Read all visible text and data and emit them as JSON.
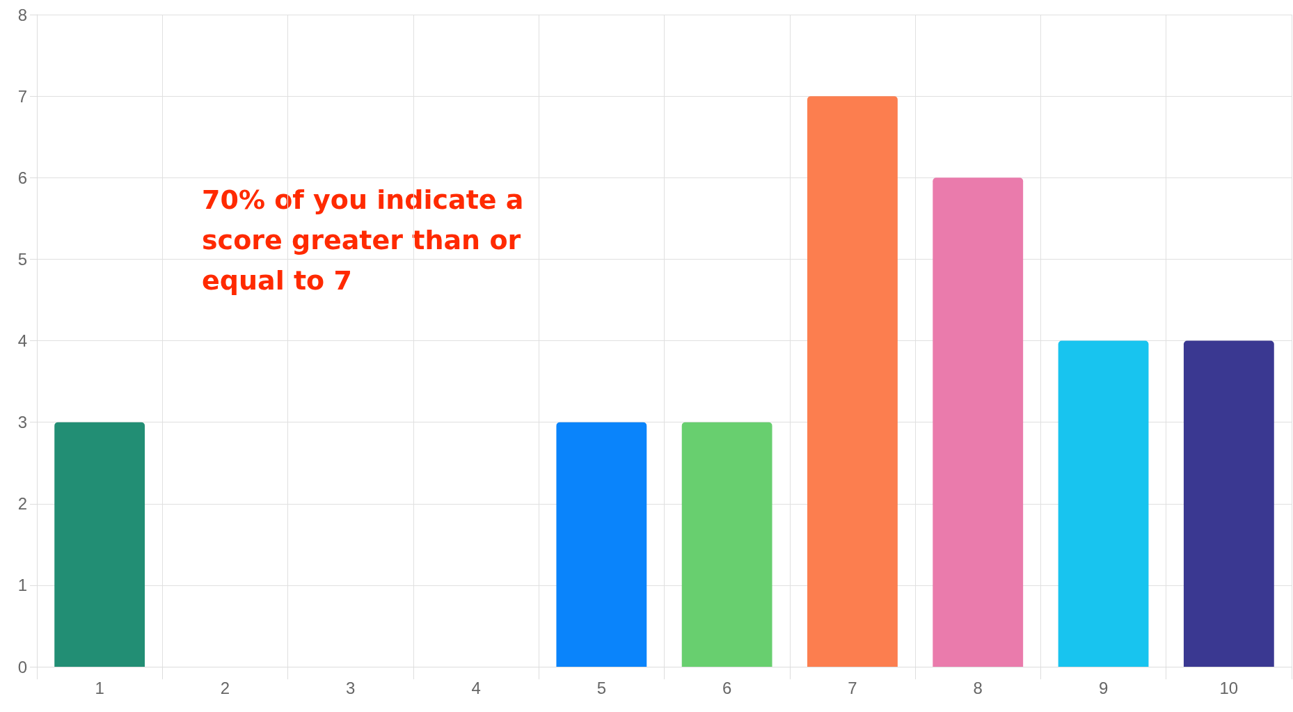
{
  "chart_data": {
    "type": "bar",
    "categories": [
      "1",
      "2",
      "3",
      "4",
      "5",
      "6",
      "7",
      "8",
      "9",
      "10"
    ],
    "values": [
      3,
      0,
      0,
      0,
      3,
      3,
      7,
      6,
      4,
      4
    ],
    "colors": [
      "#228e74",
      "#228e74",
      "#228e74",
      "#228e74",
      "#0a84fb",
      "#68cf6f",
      "#fc7e4f",
      "#ea7bac",
      "#18c4ef",
      "#3a3891"
    ],
    "ylim": [
      0,
      8
    ],
    "yticks": [
      0,
      1,
      2,
      3,
      4,
      5,
      6,
      7,
      8
    ],
    "grid": true,
    "annotations": [
      "70% of you indicate a score greater than or equal to 7"
    ]
  }
}
